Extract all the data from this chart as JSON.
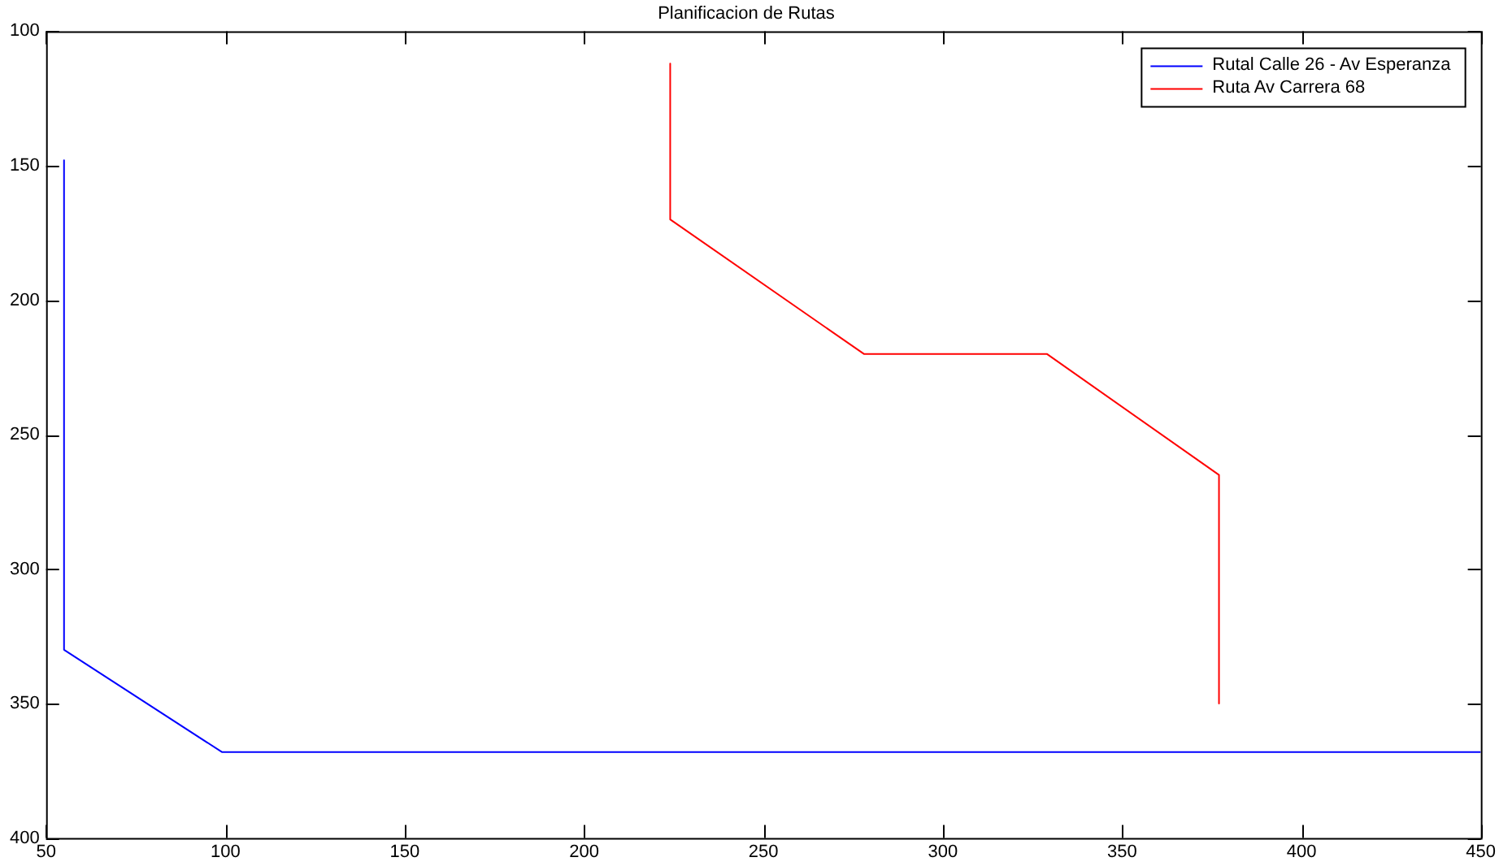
{
  "chart_data": {
    "type": "line",
    "title": "Planificacion de Rutas",
    "xlim": [
      50,
      450
    ],
    "xticks": [
      50,
      100,
      150,
      200,
      250,
      300,
      350,
      400,
      450
    ],
    "ylim": [
      400,
      100
    ],
    "yticks": [
      100,
      150,
      200,
      250,
      300,
      350,
      400
    ],
    "legend": "top right",
    "marker": "none",
    "line_style": "solid",
    "series": [
      {
        "name": "Rutal Calle 26 - Av Esperanza",
        "color": "#0000ff",
        "x": [
          55,
          55,
          99,
          450
        ],
        "values": [
          148,
          330,
          368,
          368
        ]
      },
      {
        "name": "Ruta Av Carrera 68",
        "color": "#ff0000",
        "x": [
          224,
          224,
          278,
          329,
          377,
          377
        ],
        "values": [
          112,
          170,
          220,
          220,
          265,
          350
        ]
      }
    ]
  }
}
